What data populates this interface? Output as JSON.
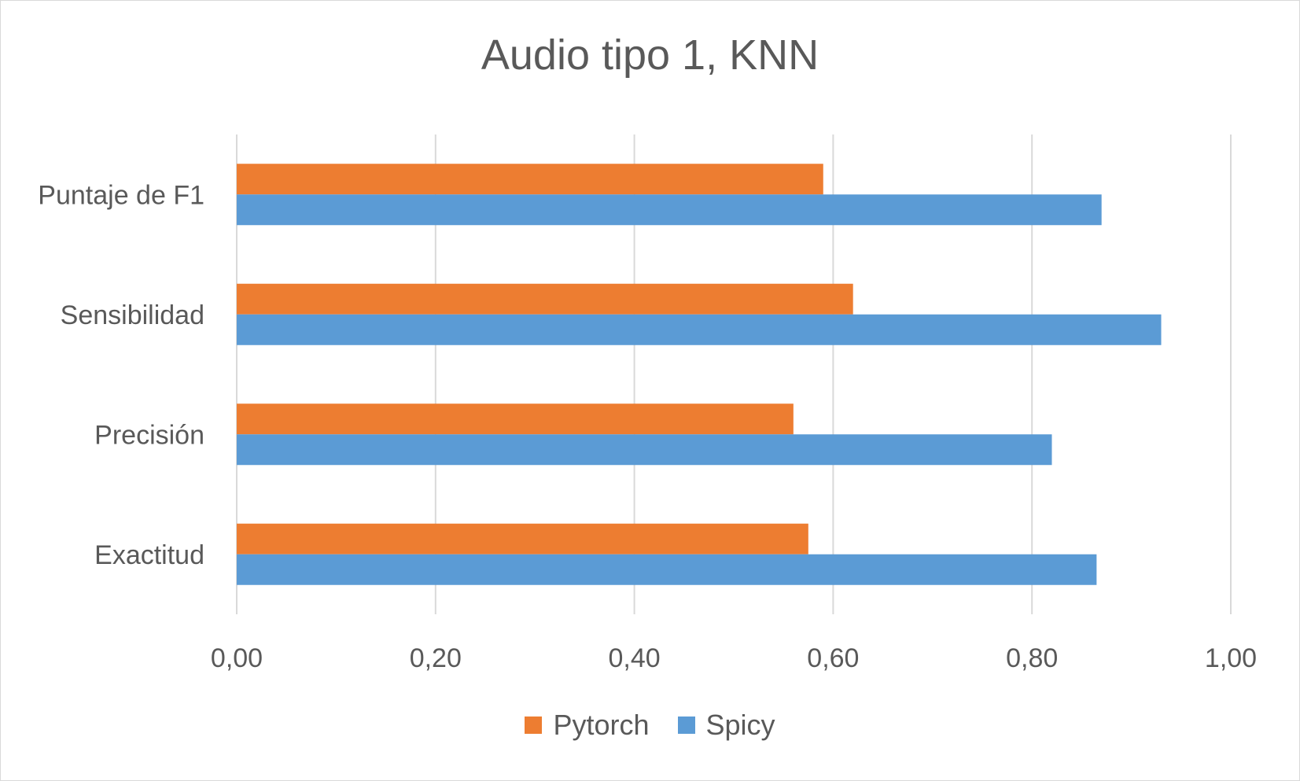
{
  "chart_data": {
    "type": "bar",
    "orientation": "horizontal",
    "title": "Audio tipo 1, KNN",
    "categories": [
      "Puntaje de F1",
      "Sensibilidad",
      "Precisión",
      "Exactitud"
    ],
    "series": [
      {
        "name": "Pytorch",
        "color": "#ED7D31",
        "values": [
          0.59,
          0.62,
          0.56,
          0.575
        ]
      },
      {
        "name": "Spicy",
        "color": "#5B9BD5",
        "values": [
          0.87,
          0.93,
          0.82,
          0.865
        ]
      }
    ],
    "xlim": [
      0,
      1
    ],
    "x_ticks": [
      "0,00",
      "0,20",
      "0,40",
      "0,60",
      "0,80",
      "1,00"
    ],
    "xlabel": "",
    "ylabel": "",
    "grid": "vertical",
    "legend_position": "bottom"
  }
}
